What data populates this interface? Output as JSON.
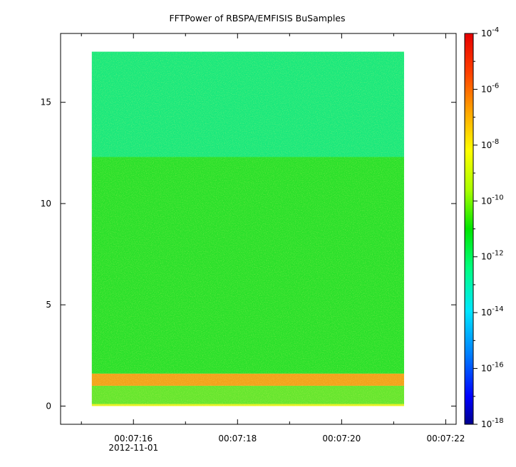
{
  "chart_data": {
    "type": "heatmap",
    "title": "FFTPower of RBSPA/EMFISIS  BuSamples",
    "xlabel": "",
    "ylabel": "",
    "x_axis": {
      "range": [
        "00:07:14.6",
        "00:07:22.2"
      ],
      "major_ticks": [
        "00:07:16",
        "00:07:18",
        "00:07:20",
        "00:07:22"
      ],
      "date_label": "2012-11-01",
      "minor_ticks": [
        "00:07:15",
        "00:07:17",
        "00:07:19",
        "00:07:21"
      ]
    },
    "y_axis": {
      "range": [
        -0.9,
        18.4
      ],
      "ticks": [
        0,
        5,
        10,
        15
      ]
    },
    "data_extent": {
      "x": [
        "00:07:15.2",
        "00:07:21.2"
      ],
      "y": [
        0,
        17.5
      ]
    },
    "colorbar": {
      "scale": "log",
      "range": [
        1e-18,
        0.0001
      ],
      "tick_labels": [
        {
          "base": "10",
          "exp": "-4"
        },
        {
          "base": "10",
          "exp": "-6"
        },
        {
          "base": "10",
          "exp": "-8"
        },
        {
          "base": "10",
          "exp": "-10"
        },
        {
          "base": "10",
          "exp": "-12"
        },
        {
          "base": "10",
          "exp": "-14"
        },
        {
          "base": "10",
          "exp": "-16"
        },
        {
          "base": "10",
          "exp": "-18"
        }
      ],
      "colormap": [
        "#00008c",
        "#0000ff",
        "#0080ff",
        "#00e6ff",
        "#00ff80",
        "#00e600",
        "#aaff00",
        "#ffff00",
        "#ffa500",
        "#ff4000",
        "#e60000"
      ]
    },
    "bands": [
      {
        "y_range": [
          12.3,
          17.5
        ],
        "log_power": -12.3,
        "description_color": "#1be87c"
      },
      {
        "y_range": [
          1.6,
          12.3
        ],
        "log_power": -10.6,
        "description_color": "#2be02b"
      },
      {
        "y_range": [
          1.0,
          1.6
        ],
        "log_power": -8.0,
        "description_color": "#f2a21b"
      },
      {
        "y_range": [
          0.1,
          1.0
        ],
        "log_power": -10.0,
        "description_color": "#66e62e"
      },
      {
        "y_range": [
          0,
          0.1
        ],
        "log_power": -8.5,
        "description_color": "#e6f020"
      }
    ]
  }
}
